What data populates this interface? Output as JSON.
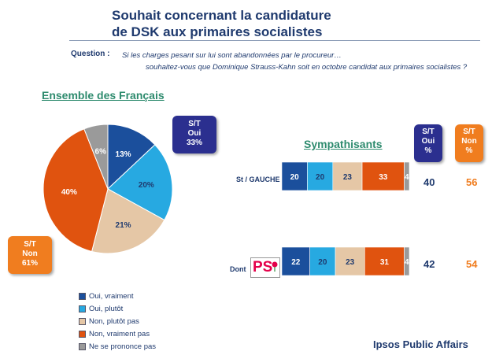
{
  "header": {
    "title_line1": "Souhait concernant la candidature",
    "title_line2": "de DSK aux primaires socialistes",
    "question_label": "Question :",
    "question_line1": "Si les charges pesant sur lui sont abandonnées par le procureur…",
    "question_line2": "souhaitez-vous que Dominique Strauss-Kahn soit en octobre candidat aux primaires socialistes ?"
  },
  "chart_data": [
    {
      "type": "pie",
      "title": "Ensemble des Français",
      "categories": [
        "Oui, vraiment",
        "Oui, plutôt",
        "Non, plutôt pas",
        "Non, vraiment pas",
        "Ne se prononce pas"
      ],
      "values": [
        13,
        20,
        21,
        40,
        6
      ],
      "value_labels": [
        "13%",
        "20%",
        "21%",
        "40%",
        "6%"
      ],
      "colors": [
        "#1b4f9c",
        "#27a9e1",
        "#e5c7a6",
        "#e0530f",
        "#9a9a9a"
      ],
      "callouts": {
        "oui": [
          "S/T",
          "Oui",
          "33%"
        ],
        "non": [
          "S/T",
          "Non",
          "61%"
        ]
      },
      "legend_position": "bottom-left"
    },
    {
      "type": "bar",
      "orientation": "horizontal-stacked",
      "title": "Sympathisants",
      "categories": [
        "St / GAUCHE",
        "Dont PS"
      ],
      "series": [
        {
          "name": "Oui, vraiment",
          "values": [
            20,
            22
          ],
          "color": "#1b4f9c"
        },
        {
          "name": "Oui, plutôt",
          "values": [
            20,
            20
          ],
          "color": "#27a9e1"
        },
        {
          "name": "Non, plutôt pas",
          "values": [
            23,
            23
          ],
          "color": "#e5c7a6"
        },
        {
          "name": "Non, vraiment pas",
          "values": [
            33,
            31
          ],
          "color": "#e0530f"
        },
        {
          "name": "Ne se prononce pas",
          "values": [
            4,
            4
          ],
          "color": "#9a9a9a"
        }
      ],
      "row_label_dont": "Dont",
      "row_label_ps_logo": "PS",
      "col_head_oui": [
        "S/T",
        "Oui",
        "%"
      ],
      "col_head_non": [
        "S/T",
        "Non",
        "%"
      ],
      "totals_oui": [
        "40",
        "42"
      ],
      "totals_non": [
        "56",
        "54"
      ]
    }
  ],
  "footer": {
    "brand": "Ipsos Public Affairs"
  }
}
